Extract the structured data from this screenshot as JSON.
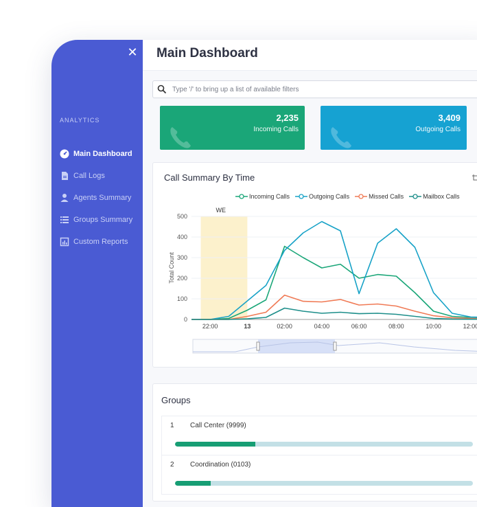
{
  "sidebar": {
    "close_label": "✕",
    "section": "ANALYTICS",
    "items": [
      {
        "label": "Main Dashboard",
        "icon": "gauge-icon",
        "active": true
      },
      {
        "label": "Call Logs",
        "icon": "document-icon"
      },
      {
        "label": "Agents Summary",
        "icon": "person-icon"
      },
      {
        "label": "Groups Summary",
        "icon": "list-icon"
      },
      {
        "label": "Custom Reports",
        "icon": "report-icon"
      }
    ]
  },
  "header": {
    "title": "Main Dashboard"
  },
  "search": {
    "placeholder": "Type '/' to bring up a list of available filters"
  },
  "stats": [
    {
      "value": "2,235",
      "label": "Incoming Calls",
      "color": "#1aa678"
    },
    {
      "value": "3,409",
      "label": "Outgoing Calls",
      "color": "#16a2d2"
    }
  ],
  "chart_card": {
    "title": "Call Summary By Time"
  },
  "chart_data": {
    "type": "line",
    "xlabel": "",
    "ylabel": "Total Count",
    "ylim": [
      0,
      500
    ],
    "y_ticks": [
      0,
      100,
      200,
      300,
      400,
      500
    ],
    "x_ticks": [
      "22:00",
      "13",
      "02:00",
      "04:00",
      "06:00",
      "08:00",
      "10:00",
      "12:00"
    ],
    "highlight_label": "WE",
    "highlight_range_hours": [
      -2.5,
      0
    ],
    "x": [
      -3,
      -2,
      -1,
      0,
      1,
      2,
      3,
      4,
      5,
      6,
      7,
      8,
      9,
      10,
      11,
      12,
      13
    ],
    "series": [
      {
        "name": "Incoming Calls",
        "color": "#1aa678",
        "values": [
          0,
          0,
          5,
          45,
          95,
          355,
          300,
          250,
          268,
          200,
          218,
          210,
          130,
          40,
          15,
          10,
          8
        ]
      },
      {
        "name": "Outgoing Calls",
        "color": "#17a2c7",
        "values": [
          0,
          0,
          15,
          90,
          165,
          335,
          420,
          475,
          430,
          125,
          370,
          440,
          350,
          130,
          30,
          12,
          10
        ]
      },
      {
        "name": "Missed Calls",
        "color": "#f07a55",
        "values": [
          0,
          0,
          0,
          15,
          35,
          118,
          88,
          85,
          97,
          70,
          75,
          65,
          40,
          18,
          8,
          5,
          3
        ]
      },
      {
        "name": "Mailbox Calls",
        "color": "#1d8e8a",
        "values": [
          0,
          0,
          0,
          3,
          10,
          55,
          40,
          30,
          35,
          28,
          30,
          25,
          15,
          5,
          2,
          1,
          1
        ]
      }
    ],
    "grid": true,
    "legend_position": "top"
  },
  "groups": {
    "title": "Groups",
    "rows": [
      {
        "index": "1",
        "name": "Call Center (9999)",
        "progress": 0.27
      },
      {
        "index": "2",
        "name": "Coordination (0103)",
        "progress": 0.12
      }
    ]
  }
}
